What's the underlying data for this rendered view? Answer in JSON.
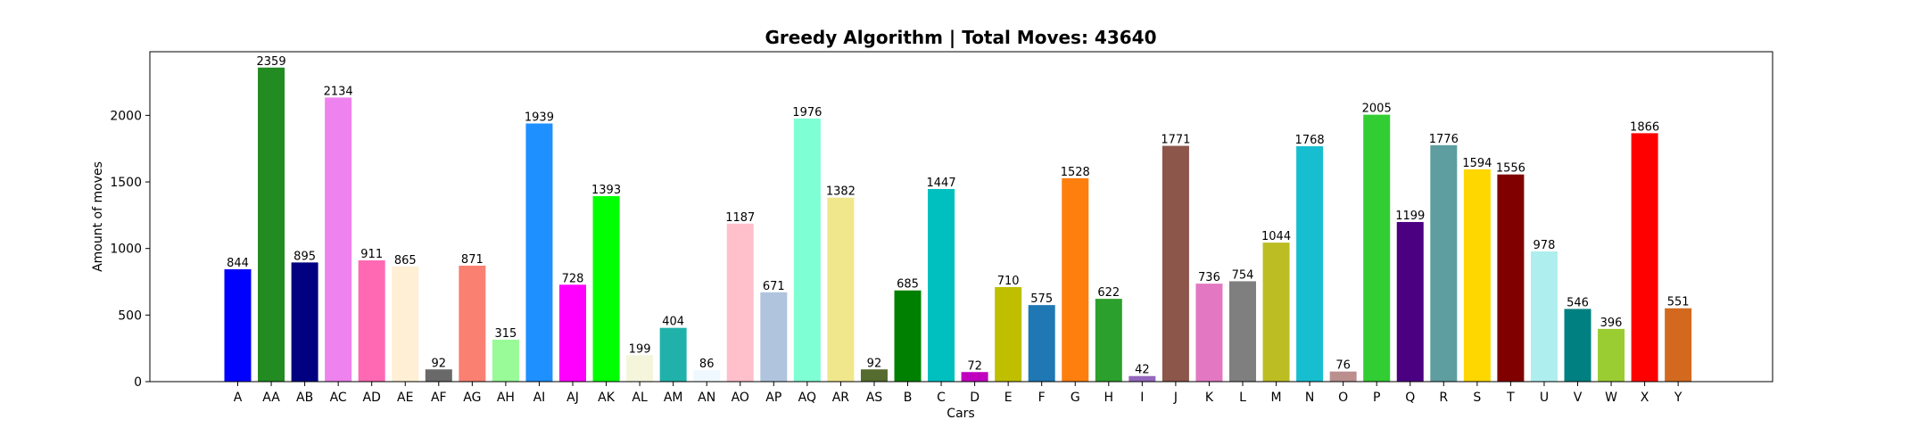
{
  "chart_data": {
    "type": "bar",
    "title": "Greedy Algorithm | Total Moves: 43640",
    "xlabel": "Cars",
    "ylabel": "Amount of moves",
    "ylim": [
      0,
      2478
    ],
    "yticks": [
      0,
      500,
      1000,
      1500,
      2000
    ],
    "grid": false,
    "categories": [
      "A",
      "AA",
      "AB",
      "AC",
      "AD",
      "AE",
      "AF",
      "AG",
      "AH",
      "AI",
      "AJ",
      "AK",
      "AL",
      "AM",
      "AN",
      "AO",
      "AP",
      "AQ",
      "AR",
      "AS",
      "B",
      "C",
      "D",
      "E",
      "F",
      "G",
      "H",
      "I",
      "J",
      "K",
      "L",
      "M",
      "N",
      "O",
      "P",
      "Q",
      "R",
      "S",
      "T",
      "U",
      "V",
      "W",
      "X",
      "Y"
    ],
    "values": [
      844,
      2359,
      895,
      2134,
      911,
      865,
      92,
      871,
      315,
      1939,
      728,
      1393,
      199,
      404,
      86,
      1187,
      671,
      1976,
      1382,
      92,
      685,
      1447,
      72,
      710,
      575,
      1528,
      622,
      42,
      1771,
      736,
      754,
      1044,
      1768,
      76,
      2005,
      1199,
      1776,
      1594,
      1556,
      978,
      546,
      396,
      1866,
      551
    ],
    "colors": [
      "#0000ff",
      "#228b22",
      "#000080",
      "#ee82ee",
      "#ff69b4",
      "#ffefd5",
      "#696969",
      "#fa8072",
      "#98fb98",
      "#1e90ff",
      "#ff00ff",
      "#00ff00",
      "#f5f5dc",
      "#20b2aa",
      "#f0f8ff",
      "#ffc0cb",
      "#b0c4de",
      "#7fffd4",
      "#f0e68c",
      "#556b2f",
      "#008000",
      "#00bfbf",
      "#bf00bf",
      "#bfbf00",
      "#1f77b4",
      "#ff7f0e",
      "#2ca02c",
      "#9467bd",
      "#8c564b",
      "#e377c2",
      "#7f7f7f",
      "#bcbd22",
      "#17becf",
      "#bc8f8f",
      "#32cd32",
      "#4b0082",
      "#5f9ea0",
      "#ffd700",
      "#800000",
      "#afeeee",
      "#008080",
      "#9acd32",
      "#ff0000",
      "#d2691e"
    ]
  }
}
